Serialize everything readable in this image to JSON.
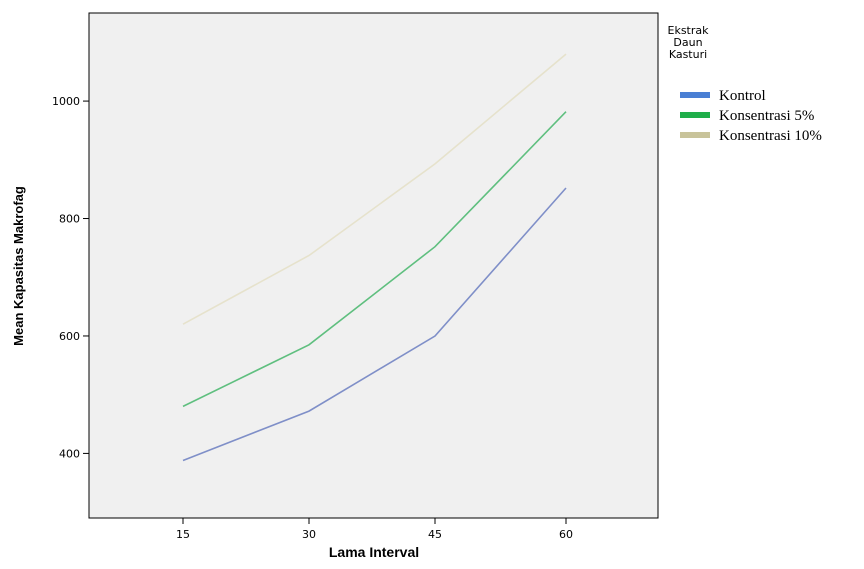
{
  "chart_data": {
    "type": "line",
    "title": "",
    "xlabel": "Lama Interval",
    "ylabel": "Mean Kapasitas Makrofag",
    "x": [
      15,
      30,
      45,
      60
    ],
    "x_ticks": [
      "15",
      "30",
      "45",
      "60"
    ],
    "y_ticks": [
      "400",
      "600",
      "800",
      "1000"
    ],
    "ylim": [
      290,
      1150
    ],
    "grid": false,
    "legend_position": "right",
    "legend_title": [
      "Ekstrak",
      "Daun",
      "Kasturi"
    ],
    "series": [
      {
        "name": "Kontrol",
        "values": [
          388,
          472,
          600,
          852
        ],
        "color": "#7f8fc8",
        "legend_color": "#4a7fd4"
      },
      {
        "name": "Konsentrasi 5%",
        "values": [
          480,
          585,
          752,
          982
        ],
        "color": "#5fbf7f",
        "legend_color": "#1fae4a"
      },
      {
        "name": "Konsentrasi 10%",
        "values": [
          620,
          737,
          893,
          1080
        ],
        "color": "#e6e2cc",
        "legend_color": "#c8c39a"
      }
    ]
  }
}
